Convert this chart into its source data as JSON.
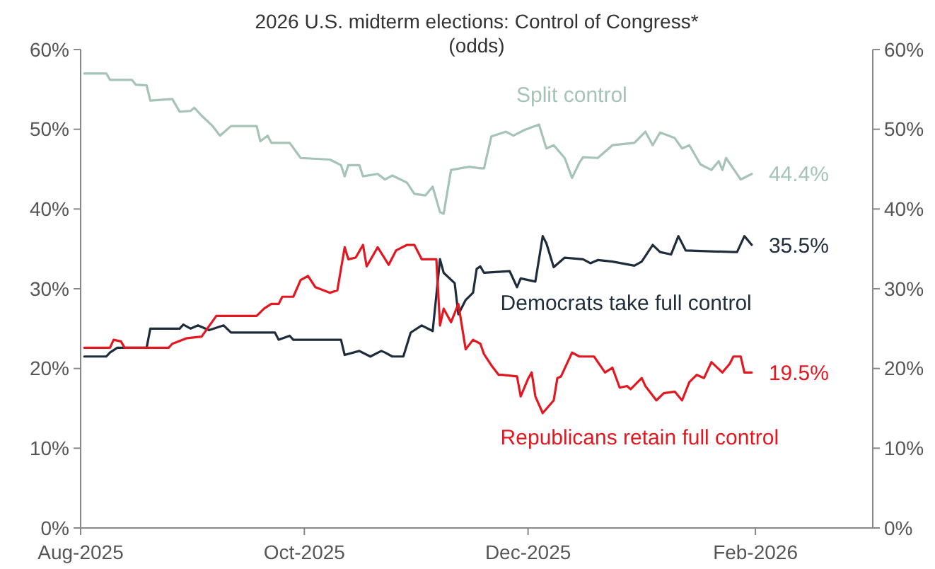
{
  "chart_data": {
    "type": "line",
    "title": "2026 U.S. midterm elections: Control of Congress*",
    "subtitle": "(odds)",
    "xlim": [
      "2025-08-01",
      "2026-03-05"
    ],
    "xticks": [
      {
        "value": "2025-08-01",
        "label": "Aug-2025"
      },
      {
        "value": "2025-10-01",
        "label": "Oct-2025"
      },
      {
        "value": "2025-12-01",
        "label": "Dec-2025"
      },
      {
        "value": "2026-02-01",
        "label": "Feb-2026"
      }
    ],
    "ylim": [
      0,
      60
    ],
    "yticks": [
      {
        "value": 0,
        "label": "0%"
      },
      {
        "value": 10,
        "label": "10%"
      },
      {
        "value": 20,
        "label": "20%"
      },
      {
        "value": 30,
        "label": "30%"
      },
      {
        "value": 40,
        "label": "40%"
      },
      {
        "value": 50,
        "label": "50%"
      },
      {
        "value": 60,
        "label": "60%"
      }
    ],
    "y2lim": [
      0,
      60
    ],
    "y2ticks": [
      {
        "value": 0,
        "label": "0%"
      },
      {
        "value": 10,
        "label": "10%"
      },
      {
        "value": 20,
        "label": "20%"
      },
      {
        "value": 30,
        "label": "30%"
      },
      {
        "value": 40,
        "label": "40%"
      },
      {
        "value": 50,
        "label": "50%"
      },
      {
        "value": 60,
        "label": "60%"
      }
    ],
    "grid": false,
    "legend": false,
    "marker": "none",
    "line_style": "solid",
    "series": [
      {
        "name": "Split control",
        "color": "#a5c3b6",
        "x": [
          "2025-08-02",
          "2025-08-08",
          "2025-08-09",
          "2025-08-15",
          "2025-08-16",
          "2025-08-19",
          "2025-08-20",
          "2025-08-26",
          "2025-08-28",
          "2025-08-31",
          "2025-09-01",
          "2025-09-03",
          "2025-09-06",
          "2025-09-08",
          "2025-09-11",
          "2025-09-18",
          "2025-09-19",
          "2025-09-21",
          "2025-09-22",
          "2025-09-27",
          "2025-09-30",
          "2025-10-08",
          "2025-10-11",
          "2025-10-12",
          "2025-10-13",
          "2025-10-16",
          "2025-10-17",
          "2025-10-21",
          "2025-10-23",
          "2025-10-25",
          "2025-10-29",
          "2025-10-31",
          "2025-11-03",
          "2025-11-05",
          "2025-11-07",
          "2025-11-08",
          "2025-11-10",
          "2025-11-15",
          "2025-11-18",
          "2025-11-19",
          "2025-11-21",
          "2025-11-25",
          "2025-11-27",
          "2025-11-30",
          "2025-12-04",
          "2025-12-06",
          "2025-12-08",
          "2025-12-11",
          "2025-12-13",
          "2025-12-15",
          "2025-12-16",
          "2025-12-20",
          "2025-12-24",
          "2025-12-30",
          "2026-01-02",
          "2026-01-04",
          "2026-01-06",
          "2026-01-10",
          "2026-01-12",
          "2026-01-14",
          "2026-01-17",
          "2026-01-20",
          "2026-01-22",
          "2026-01-23",
          "2026-01-24",
          "2026-01-28",
          "2026-01-31"
        ],
        "values": [
          57.0,
          57.0,
          56.2,
          56.2,
          55.6,
          55.5,
          53.6,
          53.8,
          52.2,
          52.3,
          52.7,
          51.7,
          50.4,
          49.2,
          50.4,
          50.4,
          48.5,
          49.2,
          48.3,
          48.3,
          46.4,
          46.2,
          45.5,
          44.1,
          45.5,
          45.5,
          44.1,
          44.4,
          43.7,
          44.2,
          43.3,
          41.9,
          41.7,
          42.8,
          39.6,
          39.4,
          44.9,
          45.3,
          45.1,
          45.1,
          49.1,
          49.7,
          49.2,
          49.9,
          50.6,
          47.6,
          48.0,
          46.4,
          43.9,
          45.8,
          46.5,
          46.4,
          48.0,
          48.3,
          49.7,
          48.0,
          49.6,
          48.9,
          47.6,
          48.0,
          45.6,
          44.9,
          46.0,
          44.9,
          46.4,
          43.7,
          44.4
        ],
        "value_labels": [
          null,
          null,
          null,
          null,
          null,
          null,
          null,
          null,
          null,
          null,
          null,
          null,
          null,
          null,
          null,
          null,
          null,
          null,
          null,
          null,
          null,
          null,
          null,
          null,
          null,
          null,
          null,
          null,
          null,
          null,
          null,
          null,
          null,
          null,
          null,
          null,
          null,
          null,
          null,
          null,
          null,
          null,
          null,
          null,
          null,
          null,
          null,
          null,
          null,
          null,
          null,
          null,
          null,
          null,
          null,
          null,
          null,
          null,
          null,
          null,
          null,
          null,
          null,
          null,
          null,
          null,
          "44.4%"
        ]
      },
      {
        "name": "Democrats take full control",
        "color": "#1e2c3b",
        "x": [
          "2025-08-02",
          "2025-08-08",
          "2025-08-09",
          "2025-08-11",
          "2025-08-19",
          "2025-08-20",
          "2025-08-28",
          "2025-08-29",
          "2025-08-31",
          "2025-09-02",
          "2025-09-05",
          "2025-09-09",
          "2025-09-11",
          "2025-09-23",
          "2025-09-24",
          "2025-09-27",
          "2025-09-28",
          "2025-10-11",
          "2025-10-12",
          "2025-10-16",
          "2025-10-19",
          "2025-10-22",
          "2025-10-23",
          "2025-10-25",
          "2025-10-28",
          "2025-10-30",
          "2025-11-02",
          "2025-11-05",
          "2025-11-07",
          "2025-11-08",
          "2025-11-11",
          "2025-11-12",
          "2025-11-14",
          "2025-11-16",
          "2025-11-17",
          "2025-11-18",
          "2025-11-19",
          "2025-11-26",
          "2025-11-28",
          "2025-11-29",
          "2025-12-03",
          "2025-12-05",
          "2025-12-06",
          "2025-12-08",
          "2025-12-11",
          "2025-12-16",
          "2025-12-18",
          "2025-12-20",
          "2025-12-24",
          "2025-12-30",
          "2026-01-01",
          "2026-01-04",
          "2026-01-06",
          "2026-01-09",
          "2026-01-11",
          "2026-01-13",
          "2026-01-26",
          "2026-01-27",
          "2026-01-29",
          "2026-01-31"
        ],
        "values": [
          21.5,
          21.5,
          22.0,
          22.6,
          22.6,
          25.0,
          25.0,
          25.5,
          25.0,
          25.4,
          24.8,
          25.4,
          24.5,
          24.5,
          23.6,
          24.1,
          23.6,
          23.6,
          21.7,
          22.2,
          21.5,
          22.2,
          22.0,
          21.5,
          21.5,
          24.5,
          25.4,
          24.7,
          33.7,
          32.0,
          30.7,
          26.8,
          28.6,
          29.5,
          32.5,
          32.8,
          32.0,
          32.2,
          30.2,
          31.3,
          30.9,
          36.6,
          35.7,
          32.7,
          33.9,
          33.7,
          33.2,
          33.6,
          33.4,
          32.9,
          33.4,
          35.5,
          34.6,
          34.3,
          36.6,
          34.8,
          34.6,
          34.6,
          36.6,
          35.5
        ],
        "value_labels": [
          null,
          null,
          null,
          null,
          null,
          null,
          null,
          null,
          null,
          null,
          null,
          null,
          null,
          null,
          null,
          null,
          null,
          null,
          null,
          null,
          null,
          null,
          null,
          null,
          null,
          null,
          null,
          null,
          null,
          null,
          null,
          null,
          null,
          null,
          null,
          null,
          null,
          null,
          null,
          null,
          null,
          null,
          null,
          null,
          null,
          null,
          null,
          null,
          null,
          null,
          null,
          null,
          null,
          null,
          null,
          null,
          null,
          null,
          null,
          "35.5%"
        ]
      },
      {
        "name": "Republicans retain full control",
        "color": "#e3171f",
        "x": [
          "2025-08-02",
          "2025-08-09",
          "2025-08-10",
          "2025-08-12",
          "2025-08-13",
          "2025-08-25",
          "2025-08-26",
          "2025-08-30",
          "2025-09-03",
          "2025-09-07",
          "2025-09-18",
          "2025-09-20",
          "2025-09-22",
          "2025-09-24",
          "2025-09-25",
          "2025-09-28",
          "2025-09-30",
          "2025-10-02",
          "2025-10-04",
          "2025-10-08",
          "2025-10-10",
          "2025-10-12",
          "2025-10-13",
          "2025-10-15",
          "2025-10-17",
          "2025-10-18",
          "2025-10-21",
          "2025-10-24",
          "2025-10-26",
          "2025-10-29",
          "2025-10-31",
          "2025-11-02",
          "2025-11-04",
          "2025-11-06",
          "2025-11-07",
          "2025-11-08",
          "2025-11-10",
          "2025-11-12",
          "2025-11-14",
          "2025-11-16",
          "2025-11-18",
          "2025-11-19",
          "2025-11-21",
          "2025-11-23",
          "2025-11-24",
          "2025-11-28",
          "2025-11-29",
          "2025-12-01",
          "2025-12-02",
          "2025-12-03",
          "2025-12-05",
          "2025-12-08",
          "2025-12-09",
          "2025-12-10",
          "2025-12-13",
          "2025-12-15",
          "2025-12-19",
          "2025-12-22",
          "2025-12-24",
          "2025-12-26",
          "2025-12-28",
          "2025-12-29",
          "2026-01-01",
          "2026-01-02",
          "2026-01-05",
          "2026-01-07",
          "2026-01-10",
          "2026-01-12",
          "2026-01-14",
          "2026-01-16",
          "2026-01-18",
          "2026-01-20",
          "2026-01-23",
          "2026-01-25",
          "2026-01-26",
          "2026-01-28",
          "2026-01-29",
          "2026-01-31"
        ],
        "values": [
          22.6,
          22.6,
          23.6,
          23.4,
          22.6,
          22.6,
          23.1,
          23.8,
          24.0,
          26.6,
          26.6,
          27.5,
          28.1,
          28.1,
          29.0,
          29.0,
          31.1,
          31.6,
          30.2,
          29.5,
          29.8,
          35.2,
          33.7,
          33.9,
          35.5,
          32.8,
          35.2,
          33.0,
          34.8,
          35.5,
          35.5,
          33.7,
          33.7,
          33.7,
          25.4,
          27.5,
          25.8,
          28.1,
          22.4,
          23.6,
          23.1,
          21.8,
          20.4,
          19.2,
          19.2,
          19.0,
          16.5,
          18.7,
          19.5,
          16.5,
          14.4,
          16.0,
          18.8,
          19.0,
          22.0,
          21.5,
          21.5,
          19.5,
          20.1,
          17.6,
          17.8,
          17.4,
          18.8,
          17.8,
          16.0,
          16.9,
          17.1,
          16.0,
          18.3,
          19.2,
          18.8,
          20.8,
          19.5,
          20.6,
          21.5,
          21.5,
          19.5,
          19.5
        ],
        "value_labels": [
          null,
          null,
          null,
          null,
          null,
          null,
          null,
          null,
          null,
          null,
          null,
          null,
          null,
          null,
          null,
          null,
          null,
          null,
          null,
          null,
          null,
          null,
          null,
          null,
          null,
          null,
          null,
          null,
          null,
          null,
          null,
          null,
          null,
          null,
          null,
          null,
          null,
          null,
          null,
          null,
          null,
          null,
          null,
          null,
          null,
          null,
          null,
          null,
          null,
          null,
          null,
          null,
          null,
          null,
          null,
          null,
          null,
          null,
          null,
          null,
          null,
          null,
          null,
          null,
          null,
          null,
          null,
          null,
          null,
          null,
          null,
          null,
          null,
          null,
          null,
          null,
          null,
          "19.5%"
        ]
      }
    ]
  }
}
